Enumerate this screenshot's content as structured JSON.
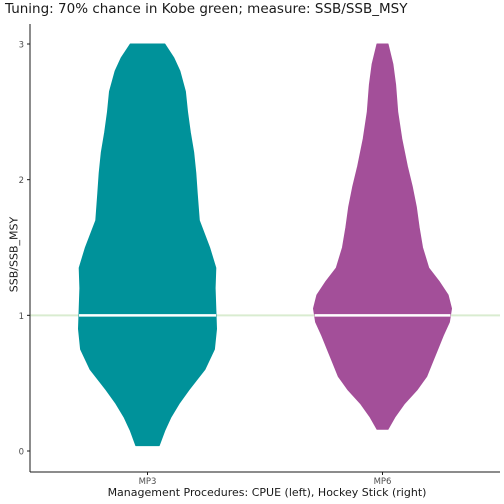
{
  "chart_data": {
    "type": "violin",
    "title": "Tuning: 70% chance in Kobe green; measure: SSB/SSB_MSY",
    "xlabel": "Management Procedures: CPUE (left), Hockey Stick (right)",
    "ylabel": "SSB/SSB_MSY",
    "ylim": [
      0,
      3
    ],
    "yticks": [
      0,
      1,
      2,
      3
    ],
    "categories": [
      "MP3",
      "MP6"
    ],
    "reference_line": {
      "y": 1,
      "color": "#d9ecd0"
    },
    "violins": [
      {
        "category": "MP3",
        "color": "#00929a",
        "median": 1.0,
        "profile": [
          [
            0.04,
            0.17
          ],
          [
            0.15,
            0.25
          ],
          [
            0.25,
            0.34
          ],
          [
            0.35,
            0.46
          ],
          [
            0.45,
            0.6
          ],
          [
            0.6,
            0.83
          ],
          [
            0.75,
            0.97
          ],
          [
            0.9,
            1.0
          ],
          [
            1.05,
            0.99
          ],
          [
            1.2,
            0.98
          ],
          [
            1.35,
            0.99
          ],
          [
            1.5,
            0.9
          ],
          [
            1.7,
            0.75
          ],
          [
            1.9,
            0.72
          ],
          [
            2.05,
            0.7
          ],
          [
            2.2,
            0.67
          ],
          [
            2.35,
            0.62
          ],
          [
            2.5,
            0.58
          ],
          [
            2.65,
            0.55
          ],
          [
            2.8,
            0.47
          ],
          [
            2.9,
            0.38
          ],
          [
            3.0,
            0.25
          ]
        ]
      },
      {
        "category": "MP6",
        "color": "#a34f99",
        "median": 1.0,
        "profile": [
          [
            0.16,
            0.08
          ],
          [
            0.25,
            0.18
          ],
          [
            0.35,
            0.32
          ],
          [
            0.45,
            0.5
          ],
          [
            0.55,
            0.64
          ],
          [
            0.65,
            0.72
          ],
          [
            0.75,
            0.8
          ],
          [
            0.85,
            0.88
          ],
          [
            0.95,
            0.97
          ],
          [
            1.05,
            1.0
          ],
          [
            1.15,
            0.95
          ],
          [
            1.25,
            0.82
          ],
          [
            1.35,
            0.67
          ],
          [
            1.5,
            0.58
          ],
          [
            1.65,
            0.53
          ],
          [
            1.8,
            0.49
          ],
          [
            1.95,
            0.43
          ],
          [
            2.1,
            0.36
          ],
          [
            2.3,
            0.28
          ],
          [
            2.5,
            0.22
          ],
          [
            2.7,
            0.19
          ],
          [
            2.85,
            0.15
          ],
          [
            3.0,
            0.08
          ]
        ]
      }
    ]
  }
}
